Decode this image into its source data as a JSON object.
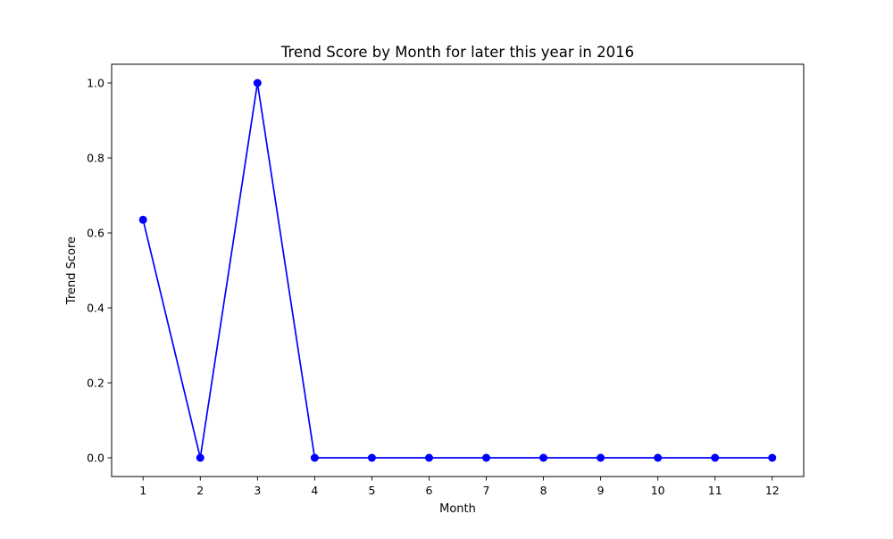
{
  "chart_data": {
    "type": "line",
    "title": "Trend Score by Month for later this year in 2016",
    "xlabel": "Month",
    "ylabel": "Trend Score",
    "x": [
      1,
      2,
      3,
      4,
      5,
      6,
      7,
      8,
      9,
      10,
      11,
      12
    ],
    "x_tick_labels": [
      "1",
      "2",
      "3",
      "4",
      "5",
      "6",
      "7",
      "8",
      "9",
      "10",
      "11",
      "12"
    ],
    "y_ticks": [
      0.0,
      0.2,
      0.4,
      0.6,
      0.8,
      1.0
    ],
    "y_tick_labels": [
      "0.0",
      "0.2",
      "0.4",
      "0.6",
      "0.8",
      "1.0"
    ],
    "xlim": [
      0.45,
      12.55
    ],
    "ylim": [
      -0.05,
      1.05
    ],
    "grid": false,
    "series": [
      {
        "color": "#0000ff",
        "marker": "circle",
        "values": [
          0.635,
          0.0,
          1.0,
          0.0,
          0.0,
          0.0,
          0.0,
          0.0,
          0.0,
          0.0,
          0.0,
          0.0
        ]
      }
    ]
  }
}
